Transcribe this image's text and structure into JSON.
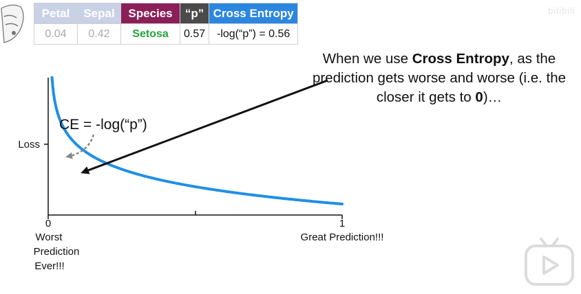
{
  "table": {
    "headers": {
      "petal": "Petal",
      "sepal": "Sepal",
      "species": "Species",
      "p": "“p”",
      "cross_entropy": "Cross Entropy"
    },
    "values": {
      "petal": "0.04",
      "sepal": "0.42",
      "species": "Setosa",
      "p": "0.57",
      "cross_entropy": "-log(“p”) = 0.56"
    },
    "colors": {
      "faded_header": "#c8d1e5",
      "species_header": "#8b1f57",
      "p_header": "#4a4a4a",
      "ce_header": "#2b86e0",
      "species_value": "#21a53a"
    }
  },
  "note": {
    "text_1": "When we use ",
    "bold_1": "Cross Entropy",
    "text_2": ", as the prediction gets worse and worse (i.e. the closer it gets to ",
    "bold_2": "0",
    "text_3": ")…"
  },
  "plot": {
    "curve_color": "#1f8fe6",
    "y_label": "Loss",
    "equation": "CE = -log(“p”)",
    "x_tick_0": "0",
    "x_tick_1": "1",
    "x_label_left_1": "Worst",
    "x_label_left_2": "Prediction",
    "x_label_left_3": "Ever!!!",
    "x_label_right": "Great Prediction!!!"
  },
  "watermark": "bilibili"
}
